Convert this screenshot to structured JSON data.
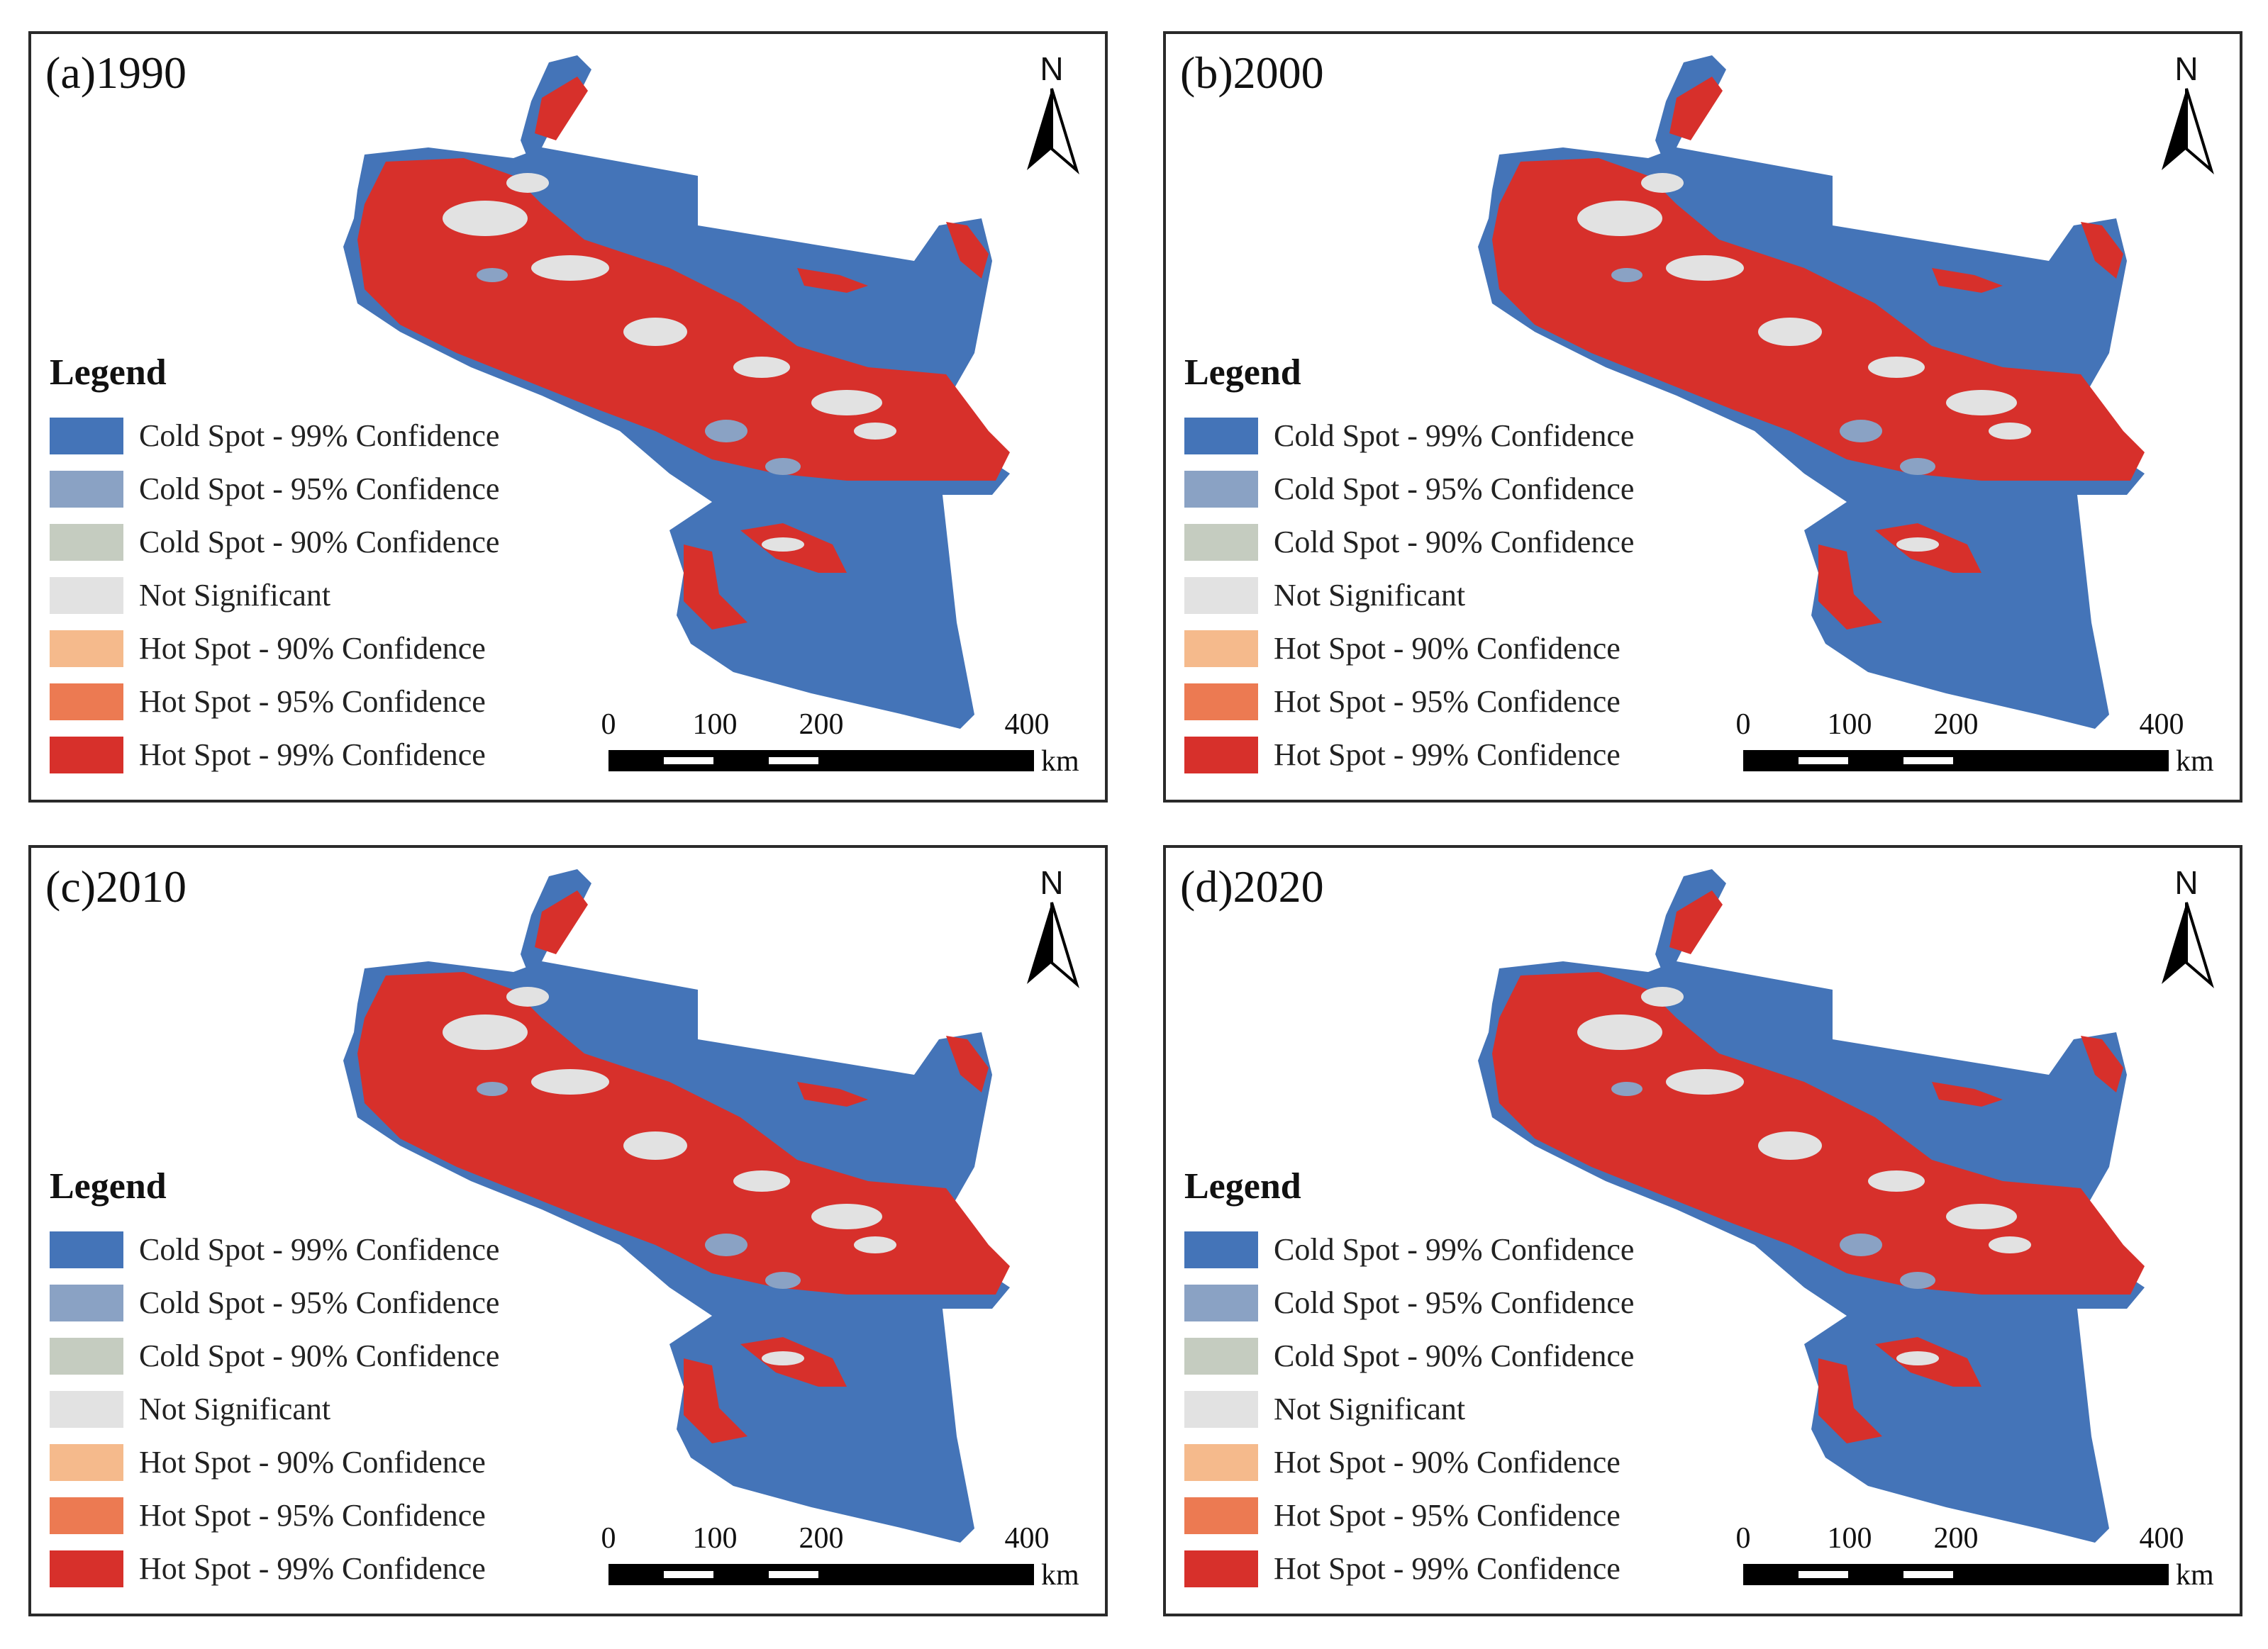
{
  "colors": {
    "cold99": "#4474b8",
    "cold95": "#8aa2c4",
    "cold90": "#c5ccc0",
    "notsig": "#e2e2e2",
    "hot90": "#f5ba8c",
    "hot95": "#ec7a52",
    "hot99": "#d7302b"
  },
  "legend": {
    "title": "Legend",
    "items": [
      {
        "label": "Cold Spot - 99% Confidence",
        "color": "#4474b8"
      },
      {
        "label": "Cold Spot - 95% Confidence",
        "color": "#8aa2c4"
      },
      {
        "label": "Cold Spot - 90% Confidence",
        "color": "#c5ccc0"
      },
      {
        "label": "Not Significant",
        "color": "#e2e2e2"
      },
      {
        "label": "Hot Spot - 90% Confidence",
        "color": "#f5ba8c"
      },
      {
        "label": "Hot Spot - 95% Confidence",
        "color": "#ec7a52"
      },
      {
        "label": "Hot Spot - 99% Confidence",
        "color": "#d7302b"
      }
    ]
  },
  "north_label": "N",
  "scale": {
    "ticks": [
      "0",
      "100",
      "200",
      "400"
    ],
    "unit": "km"
  },
  "panels": [
    {
      "title": "(a)1990"
    },
    {
      "title": "(b)2000"
    },
    {
      "title": "(c)2010"
    },
    {
      "title": "(d)2020"
    }
  ]
}
